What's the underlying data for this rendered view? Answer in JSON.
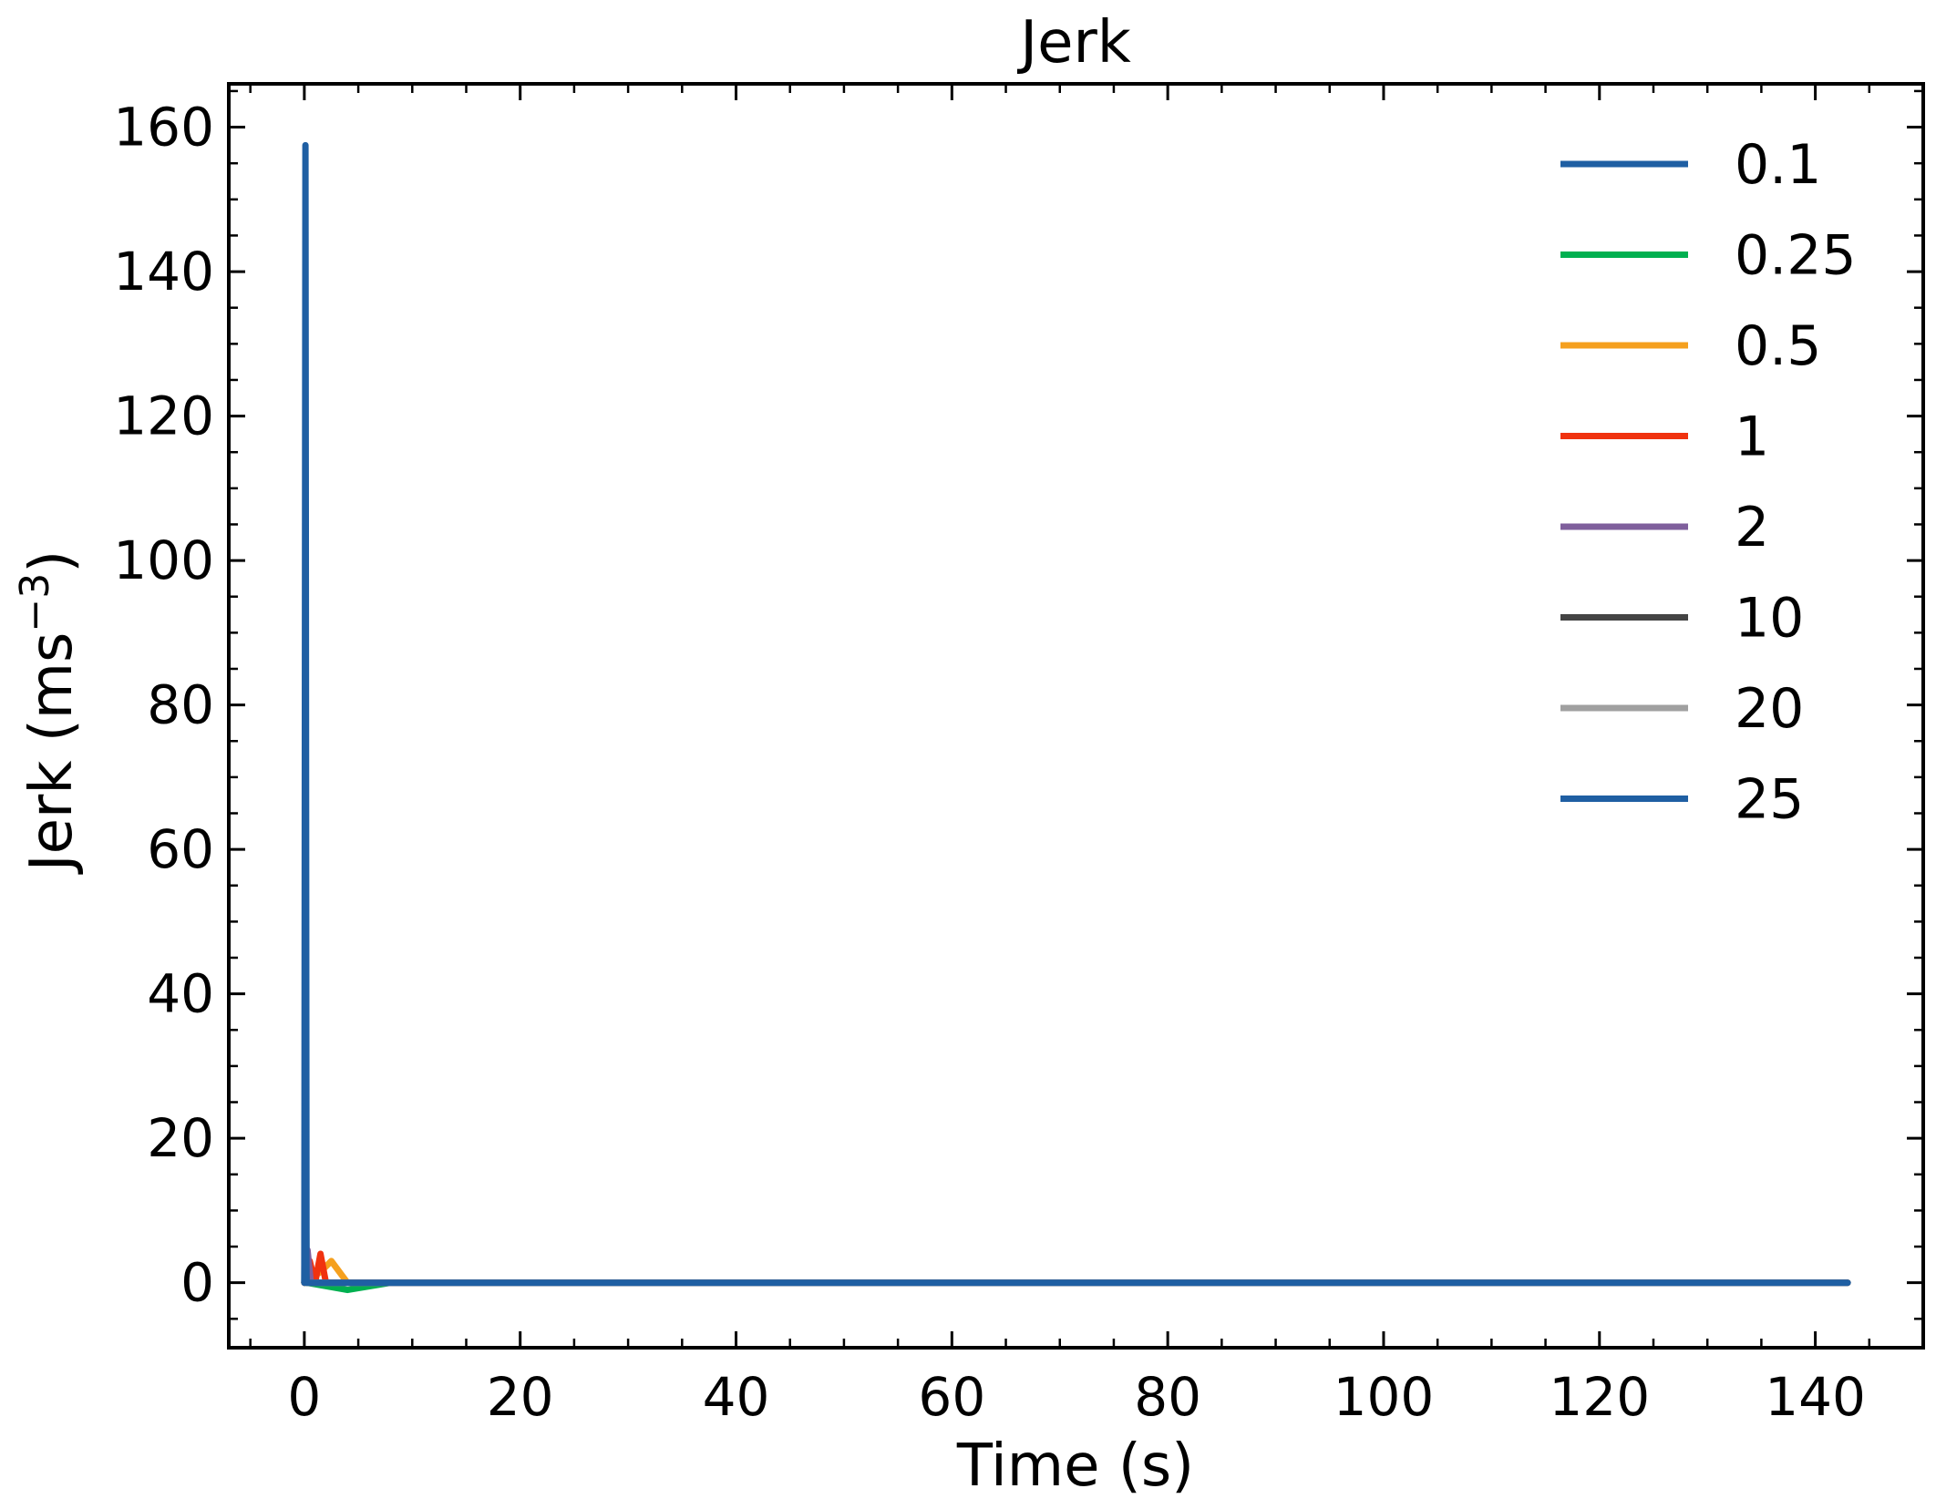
{
  "chart_data": {
    "type": "line",
    "title": "Jerk",
    "xlabel": "Time (s)",
    "ylabel": {
      "base": "Jerk (ms",
      "superscript": "−3",
      "close": ")"
    },
    "xlim": [
      -7,
      150
    ],
    "ylim": [
      -9,
      166
    ],
    "xticks": [
      0,
      20,
      40,
      60,
      80,
      100,
      120,
      140
    ],
    "xtick_labels": [
      "0",
      "20",
      "40",
      "60",
      "80",
      "100",
      "120",
      "140"
    ],
    "yticks": [
      0,
      20,
      40,
      60,
      80,
      100,
      120,
      140,
      160
    ],
    "ytick_labels": [
      "0",
      "20",
      "40",
      "60",
      "80",
      "100",
      "120",
      "140",
      "160"
    ],
    "grid": false,
    "legend_position": "top-right",
    "series": [
      {
        "name": "0.1",
        "color": "#1f5fa3",
        "x": [
          0,
          0.1,
          0.2,
          0.3,
          143
        ],
        "y": [
          0,
          157.5,
          0,
          0,
          0
        ]
      },
      {
        "name": "0.25",
        "color": "#00b050",
        "x": [
          0,
          0.25,
          4,
          8,
          143
        ],
        "y": [
          0,
          0,
          -1,
          0,
          0
        ]
      },
      {
        "name": "0.5",
        "color": "#f5a01e",
        "x": [
          0,
          1.5,
          2.5,
          4,
          143
        ],
        "y": [
          0,
          1.5,
          3,
          0,
          0
        ]
      },
      {
        "name": "1",
        "color": "#f0320f",
        "x": [
          0,
          0.5,
          1,
          1.5,
          2,
          143
        ],
        "y": [
          0,
          3,
          0,
          4,
          0,
          0
        ]
      },
      {
        "name": "2",
        "color": "#7f5f9c",
        "x": [
          0,
          0.3,
          0.6,
          1,
          143
        ],
        "y": [
          0,
          4.5,
          0,
          0,
          0
        ]
      },
      {
        "name": "10",
        "color": "#444444",
        "x": [
          0,
          0.1,
          0.2,
          143
        ],
        "y": [
          0,
          5,
          0,
          0
        ]
      },
      {
        "name": "20",
        "color": "#a0a0a0",
        "x": [
          0,
          0.1,
          0.2,
          143
        ],
        "y": [
          0,
          3,
          0,
          0
        ]
      },
      {
        "name": "25",
        "color": "#1f5fa3",
        "x": [
          0,
          0.1,
          0.2,
          143
        ],
        "y": [
          0,
          30,
          0,
          0
        ]
      }
    ]
  }
}
